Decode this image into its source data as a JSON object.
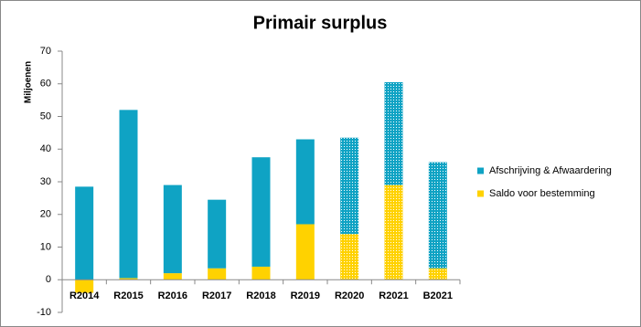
{
  "chart_data": {
    "type": "stacked_bar",
    "title": "Primair surplus",
    "y_label": "Miljoenen",
    "categories": [
      "R2014",
      "R2015",
      "R2016",
      "R2017",
      "R2018",
      "R2019",
      "R2020",
      "R2021",
      "B2021"
    ],
    "series": [
      {
        "name": "Afschrijving & Afwaardering",
        "color": "#0fa3c4",
        "values": [
          28.5,
          51.5,
          27,
          21,
          33.5,
          26,
          29.5,
          31.5,
          32.5
        ]
      },
      {
        "name": "Saldo voor bestemming",
        "color": "#ffd200",
        "values": [
          -4,
          0.5,
          2,
          3.5,
          4,
          17,
          14,
          29,
          3.5
        ]
      }
    ],
    "patterned": [
      false,
      false,
      false,
      false,
      false,
      false,
      true,
      true,
      true
    ],
    "ylim": [
      -10,
      70
    ],
    "yticks": [
      -10,
      0,
      10,
      20,
      30,
      40,
      50,
      60,
      70
    ],
    "grid": false,
    "legend": "right"
  }
}
